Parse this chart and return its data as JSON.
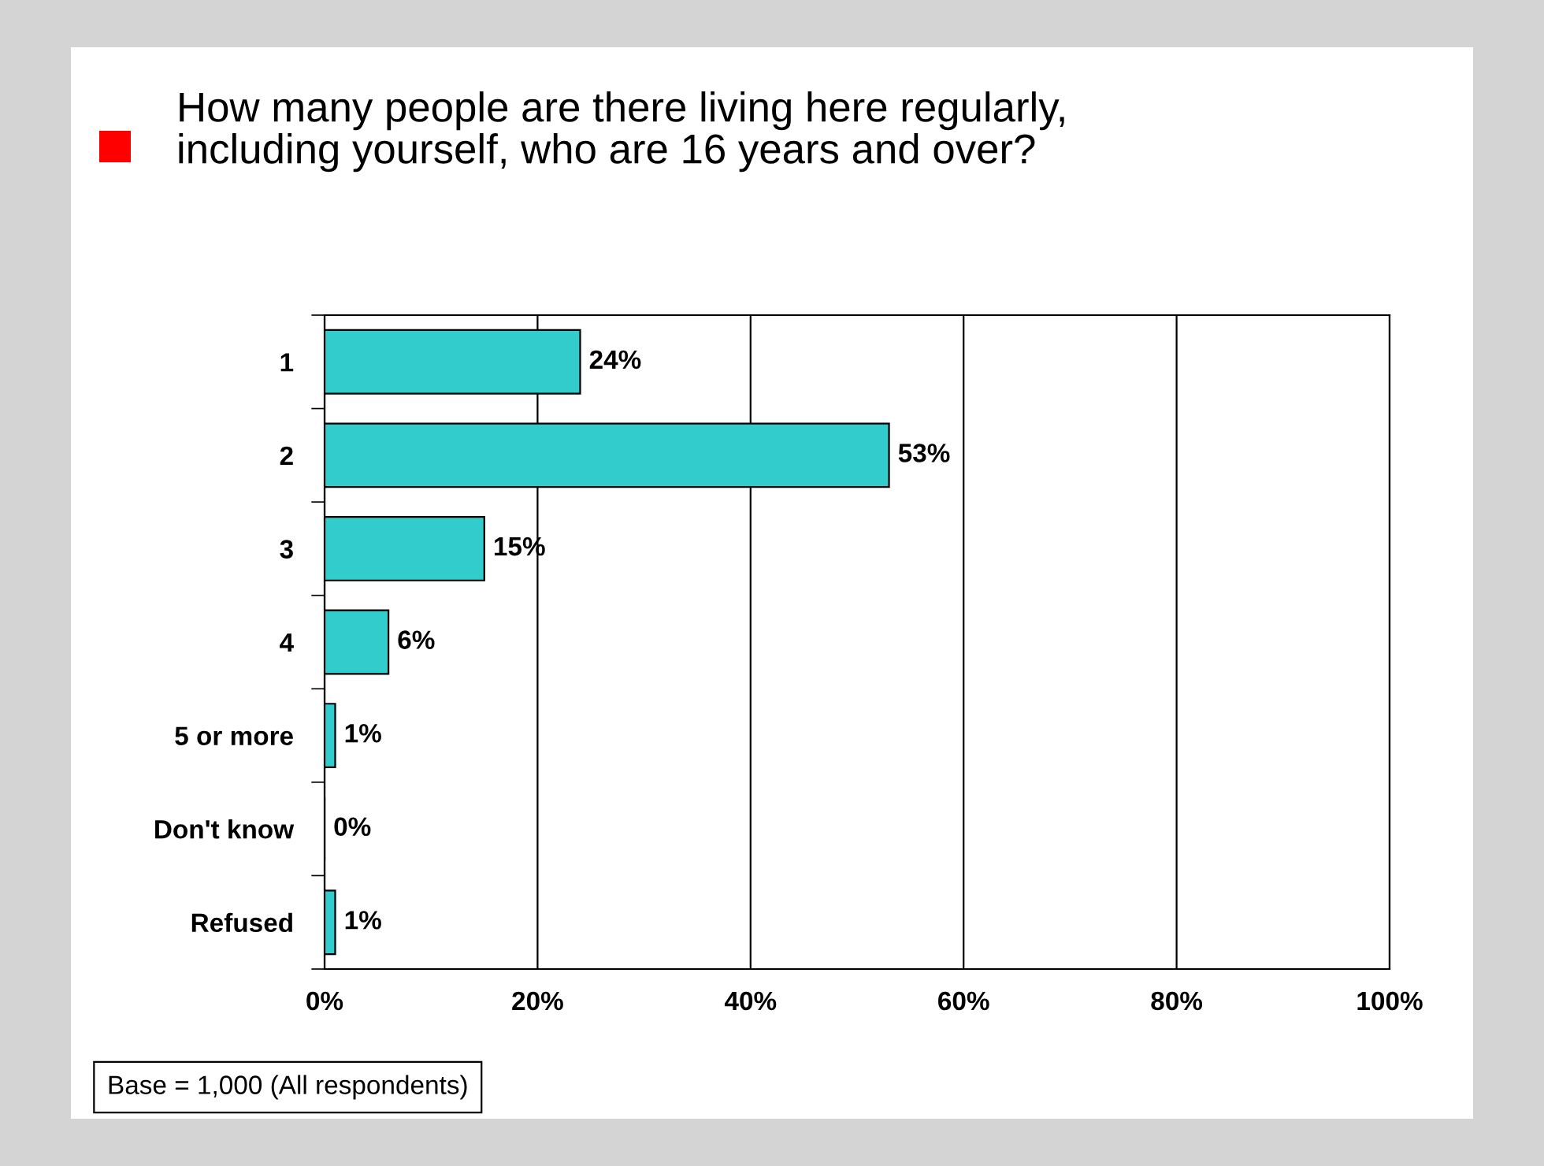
{
  "chart_data": {
    "type": "bar",
    "orientation": "horizontal",
    "title": "How many people are there living here regularly,\nincluding yourself, who are 16 years and over?",
    "categories": [
      "1",
      "2",
      "3",
      "4",
      "5 or more",
      "Don't know",
      "Refused"
    ],
    "values": [
      24,
      53,
      15,
      6,
      1,
      0,
      1
    ],
    "value_labels": [
      "24%",
      "53%",
      "15%",
      "6%",
      "1%",
      "0%",
      "1%"
    ],
    "color": "#33cccc",
    "xlim": [
      0,
      100
    ],
    "xticks": [
      {
        "value": 0,
        "label": "0%"
      },
      {
        "value": 20,
        "label": "20%"
      },
      {
        "value": 40,
        "label": "40%"
      },
      {
        "value": 60,
        "label": "60%"
      },
      {
        "value": 80,
        "label": "80%"
      },
      {
        "value": 100,
        "label": "100%"
      }
    ],
    "grid": "x",
    "legend": false,
    "annotations": [
      "Base = 1,000 (All respondents)"
    ]
  }
}
